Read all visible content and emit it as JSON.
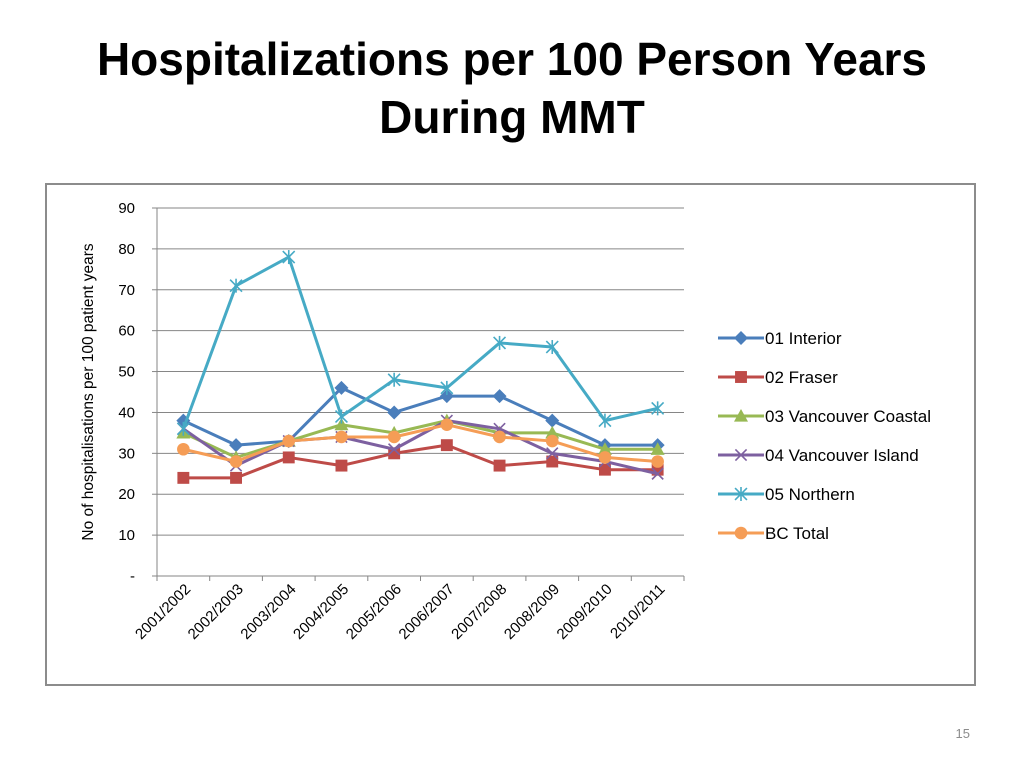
{
  "title_line1": "Hospitalizations per 100 Person Years",
  "title_line2": "During MMT",
  "page_number": "15",
  "chart_data": {
    "type": "line",
    "ylabel": "No of hospitalisations per 100 patient years",
    "xlabel": "",
    "ylim": [
      0,
      90
    ],
    "yticks": [
      0,
      10,
      20,
      30,
      40,
      50,
      60,
      70,
      80,
      90
    ],
    "ytick_labels": [
      "-",
      "10",
      "20",
      "30",
      "40",
      "50",
      "60",
      "70",
      "80",
      "90"
    ],
    "grid": "horizontal",
    "legend_position": "right",
    "categories": [
      "2001/2002",
      "2002/2003",
      "2003/2004",
      "2004/2005",
      "2005/2006",
      "2006/2007",
      "2007/2008",
      "2008/2009",
      "2009/2010",
      "2010/2011"
    ],
    "series": [
      {
        "name": "01 Interior",
        "color": "#4a7ebb",
        "marker": "diamond",
        "values": [
          38,
          32,
          33,
          46,
          40,
          44,
          44,
          38,
          32,
          32
        ]
      },
      {
        "name": "02 Fraser",
        "color": "#be4b48",
        "marker": "square",
        "values": [
          24,
          24,
          29,
          27,
          30,
          32,
          27,
          28,
          26,
          26
        ]
      },
      {
        "name": "03 Vancouver Coastal",
        "color": "#98b954",
        "marker": "triangle",
        "values": [
          35,
          29,
          33,
          37,
          35,
          38,
          35,
          35,
          31,
          31
        ]
      },
      {
        "name": "04 Vancouver Island",
        "color": "#7d60a0",
        "marker": "x",
        "values": [
          36,
          27,
          33,
          34,
          31,
          38,
          36,
          30,
          28,
          25
        ]
      },
      {
        "name": "05 Northern",
        "color": "#46aac5",
        "marker": "star",
        "values": [
          36,
          71,
          78,
          39,
          48,
          46,
          57,
          56,
          38,
          41
        ]
      },
      {
        "name": "BC Total",
        "color": "#f59d56",
        "marker": "circle",
        "values": [
          31,
          28,
          33,
          34,
          34,
          37,
          34,
          33,
          29,
          28
        ]
      }
    ]
  }
}
